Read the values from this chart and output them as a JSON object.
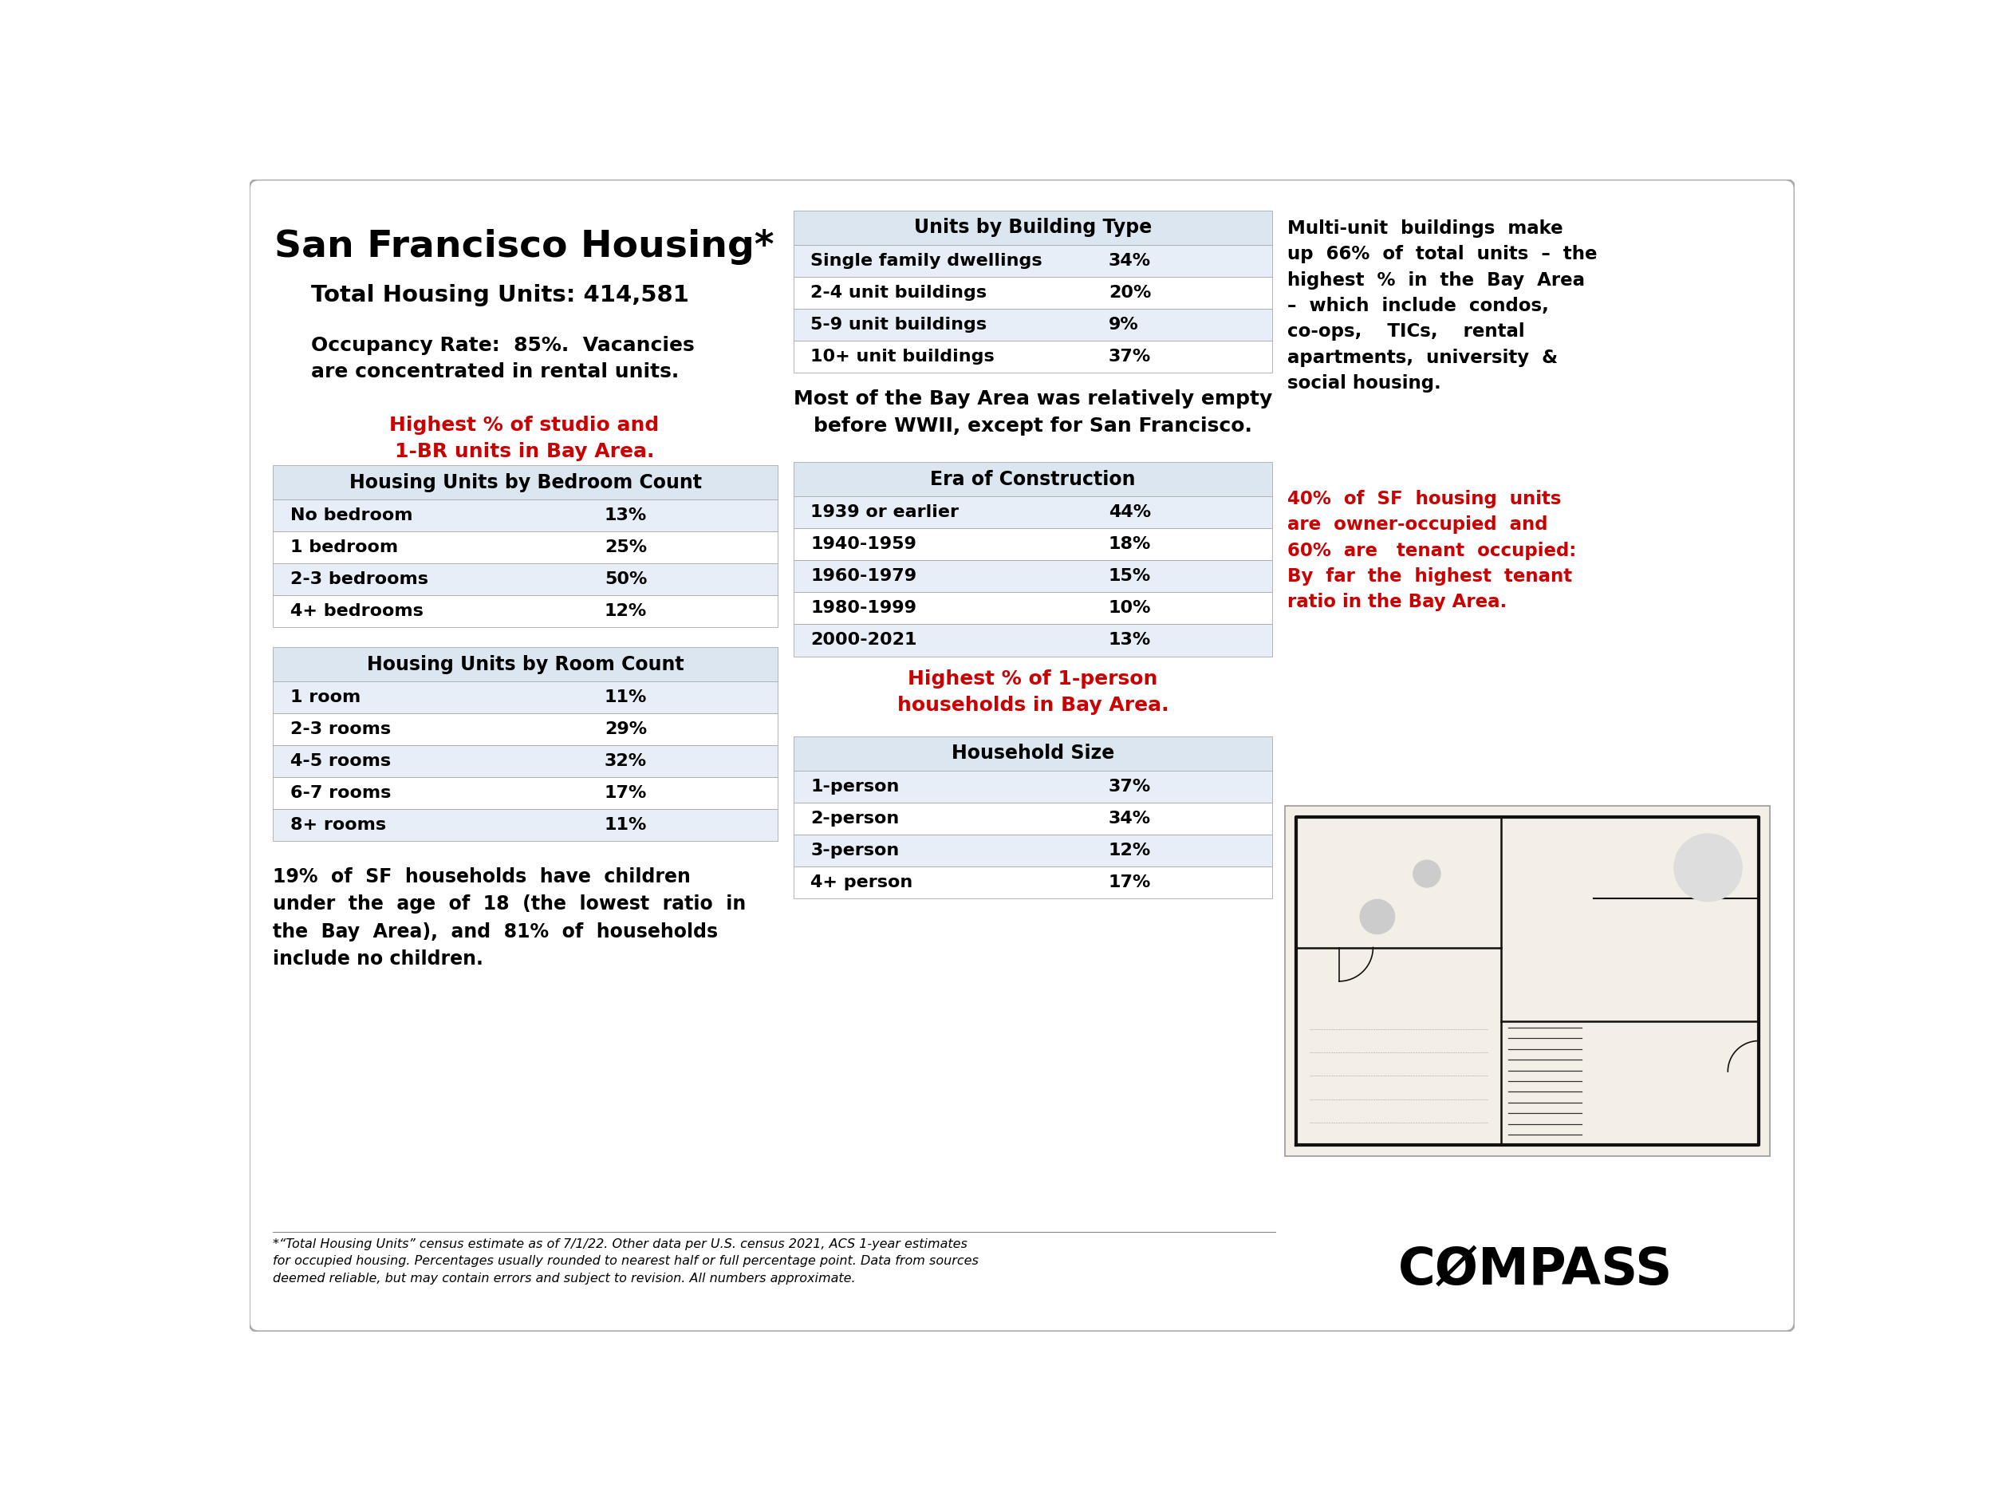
{
  "title": "San Francisco Housing*",
  "total_units": "Total Housing Units: 414,581",
  "occupancy_text": "Occupancy Rate:  85%.  Vacancies\nare concentrated in rental units.",
  "highlight1": "Highest % of studio and\n1-BR units in Bay Area.",
  "bedroom_table_title": "Housing Units by Bedroom Count",
  "bedroom_rows": [
    [
      "No bedroom",
      "13%"
    ],
    [
      "1 bedroom",
      "25%"
    ],
    [
      "2-3 bedrooms",
      "50%"
    ],
    [
      "4+ bedrooms",
      "12%"
    ]
  ],
  "room_table_title": "Housing Units by Room Count",
  "room_rows": [
    [
      "1 room",
      "11%"
    ],
    [
      "2-3 rooms",
      "29%"
    ],
    [
      "4-5 rooms",
      "32%"
    ],
    [
      "6-7 rooms",
      "17%"
    ],
    [
      "8+ rooms",
      "11%"
    ]
  ],
  "children_text": "19%  of  SF  households  have  children\nunder  the  age  of  18  (the  lowest  ratio  in\nthe  Bay  Area),  and  81%  of  households\ninclude no children.",
  "building_table_title": "Units by Building Type",
  "building_rows": [
    [
      "Single family dwellings",
      "34%"
    ],
    [
      "2-4 unit buildings",
      "20%"
    ],
    [
      "5-9 unit buildings",
      "9%"
    ],
    [
      "10+ unit buildings",
      "37%"
    ]
  ],
  "wwii_text": "Most of the Bay Area was relatively empty\nbefore WWII, except for San Francisco.",
  "era_table_title": "Era of Construction",
  "era_rows": [
    [
      "1939 or earlier",
      "44%"
    ],
    [
      "1940-1959",
      "18%"
    ],
    [
      "1960-1979",
      "15%"
    ],
    [
      "1980-1999",
      "10%"
    ],
    [
      "2000-2021",
      "13%"
    ]
  ],
  "highlight2": "Highest % of 1-person\nhouseholds in Bay Area.",
  "household_table_title": "Household Size",
  "household_rows": [
    [
      "1-person",
      "37%"
    ],
    [
      "2-person",
      "34%"
    ],
    [
      "3-person",
      "12%"
    ],
    [
      "4+ person",
      "17%"
    ]
  ],
  "right_text1": "Multi-unit  buildings  make\nup  66%  of  total  units  –  the\nhighest  %  in  the  Bay  Area\n–  which  include  condos,\nco-ops,    TICs,    rental\napartments,  university  &\nsocial housing.",
  "right_text2": "40%  of  SF  housing  units\nare  owner-occupied  and\n60%  are   tenant  occupied:\nBy  far  the  highest  tenant\nratio in the Bay Area.",
  "footnote": "*“Total Housing Units” census estimate as of 7/1/22. Other data per U.S. census 2021, ACS 1-year estimates\nfor occupied housing. Percentages usually rounded to nearest half or full percentage point. Data from sources\ndeemed reliable, but may contain errors and subject to revision. All numbers approximate.",
  "compass_text": "CØMPASS",
  "bg_color": "#ffffff",
  "table_header_color": "#dce6f1",
  "table_row_color1": "#ffffff",
  "table_row_color2": "#e8eef7",
  "border_color": "#aaaaaa",
  "red_color": "#cc0000",
  "black_color": "#000000",
  "gray_color": "#555555"
}
